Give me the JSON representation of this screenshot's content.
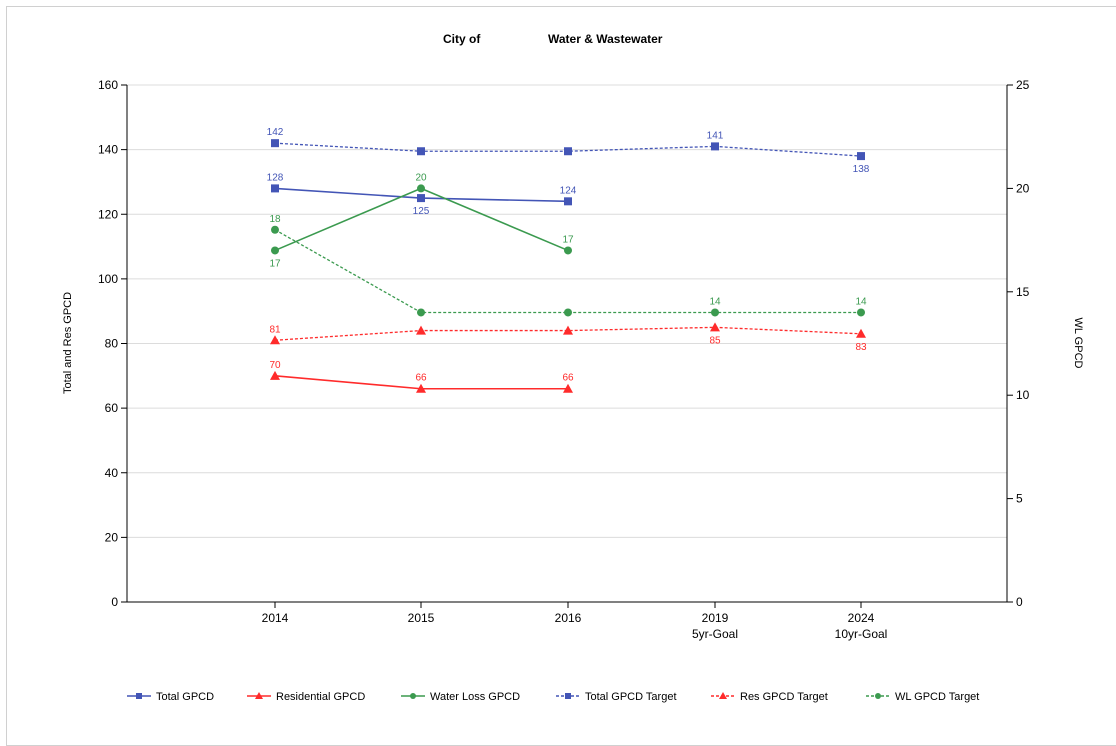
{
  "colors": {
    "total": "#4355b6",
    "residential": "#ff2b2b",
    "water_loss": "#3b9a4f",
    "gridline": "#dcdcdc",
    "axis": "#000000"
  },
  "chart_data": {
    "type": "line",
    "title_parts": [
      "City of",
      "Water & Wastewater"
    ],
    "xlabel": "",
    "ylabel_left": "Total and Res GPCD",
    "ylabel_right": "WL GPCD",
    "ylim_left": [
      0,
      160
    ],
    "ylim_right": [
      0,
      25
    ],
    "yticks_left": [
      0,
      20,
      40,
      60,
      80,
      100,
      120,
      140,
      160
    ],
    "yticks_right": [
      0,
      5,
      10,
      15,
      20,
      25
    ],
    "grid": true,
    "legend_position": "bottom",
    "categories": [
      {
        "line1": "2014",
        "line2": ""
      },
      {
        "line1": "2015",
        "line2": ""
      },
      {
        "line1": "2016",
        "line2": ""
      },
      {
        "line1": "2019",
        "line2": "5yr-Goal"
      },
      {
        "line1": "2024",
        "line2": "10yr-Goal"
      }
    ],
    "series": [
      {
        "name": "Total GPCD",
        "axis": "left",
        "color_key": "total",
        "dash": false,
        "marker": "square",
        "values": [
          128,
          125,
          124,
          null,
          null
        ],
        "labels": [
          "128",
          "125",
          "124",
          "",
          ""
        ],
        "label_pos": [
          "above",
          "below",
          "above",
          "",
          ""
        ]
      },
      {
        "name": "Residential GPCD",
        "axis": "left",
        "color_key": "residential",
        "dash": false,
        "marker": "triangle",
        "values": [
          70,
          66,
          66,
          null,
          null
        ],
        "labels": [
          "70",
          "66",
          "66",
          "",
          ""
        ],
        "label_pos": [
          "above",
          "above",
          "above",
          "",
          ""
        ]
      },
      {
        "name": "Water Loss GPCD",
        "axis": "right",
        "color_key": "water_loss",
        "dash": false,
        "marker": "circle",
        "values": [
          17,
          20,
          17,
          null,
          null
        ],
        "labels": [
          "17",
          "20",
          "17",
          "",
          ""
        ],
        "label_pos": [
          "below",
          "above",
          "above",
          "",
          ""
        ]
      },
      {
        "name": "Total GPCD Target",
        "axis": "left",
        "color_key": "total",
        "dash": true,
        "marker": "square",
        "values": [
          142,
          139.5,
          139.5,
          141,
          138
        ],
        "labels": [
          "142",
          "",
          "",
          "141",
          "138"
        ],
        "label_pos": [
          "above",
          "",
          "",
          "above",
          "below"
        ]
      },
      {
        "name": "Res GPCD Target",
        "axis": "left",
        "color_key": "residential",
        "dash": true,
        "marker": "triangle",
        "values": [
          81,
          84,
          84,
          85,
          83
        ],
        "labels": [
          "81",
          "",
          "",
          "85",
          "83"
        ],
        "label_pos": [
          "above",
          "",
          "",
          "below",
          "below"
        ]
      },
      {
        "name": "WL GPCD Target",
        "axis": "right",
        "color_key": "water_loss",
        "dash": true,
        "marker": "circle",
        "values": [
          18,
          14,
          14,
          14,
          14
        ],
        "labels": [
          "18",
          "",
          "",
          "14",
          "14"
        ],
        "label_pos": [
          "above",
          "",
          "",
          "above",
          "above"
        ]
      }
    ]
  }
}
